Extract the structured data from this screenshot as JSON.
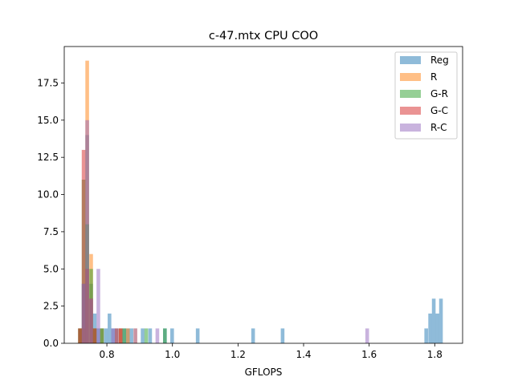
{
  "chart_data": {
    "type": "histogram",
    "title": "c-47.mtx CPU COO",
    "xlabel": "GFLOPS",
    "ylabel": "",
    "xlim": [
      0.67,
      1.885
    ],
    "ylim": [
      0,
      19.95
    ],
    "x_ticks": [
      0.8,
      1.0,
      1.2,
      1.4,
      1.6,
      1.8
    ],
    "x_tick_labels": [
      "0.8",
      "1.0",
      "1.2",
      "1.4",
      "1.6",
      "1.8"
    ],
    "y_ticks": [
      0.0,
      2.5,
      5.0,
      7.5,
      10.0,
      12.5,
      15.0,
      17.5
    ],
    "y_tick_labels": [
      "0.0",
      "2.5",
      "5.0",
      "7.5",
      "10.0",
      "12.5",
      "15.0",
      "17.5"
    ],
    "legend_position": "top-right",
    "grid": false,
    "bin_width": 0.0112,
    "series": [
      {
        "name": "Reg",
        "color": "#1f77b4",
        "bins": [
          {
            "x": 0.718,
            "count": 1
          },
          {
            "x": 0.729,
            "count": 4
          },
          {
            "x": 0.74,
            "count": 14
          },
          {
            "x": 0.752,
            "count": 4
          },
          {
            "x": 0.763,
            "count": 2
          },
          {
            "x": 0.774,
            "count": 1
          },
          {
            "x": 0.785,
            "count": 1
          },
          {
            "x": 0.797,
            "count": 1
          },
          {
            "x": 0.808,
            "count": 2
          },
          {
            "x": 0.819,
            "count": 1
          },
          {
            "x": 0.83,
            "count": 1
          },
          {
            "x": 0.842,
            "count": 1
          },
          {
            "x": 0.853,
            "count": 1
          },
          {
            "x": 0.864,
            "count": 1
          },
          {
            "x": 0.875,
            "count": 1
          },
          {
            "x": 0.909,
            "count": 1
          },
          {
            "x": 0.932,
            "count": 1
          },
          {
            "x": 0.977,
            "count": 1
          },
          {
            "x": 0.999,
            "count": 1
          },
          {
            "x": 1.077,
            "count": 1
          },
          {
            "x": 1.246,
            "count": 1
          },
          {
            "x": 1.336,
            "count": 1
          },
          {
            "x": 1.774,
            "count": 1
          },
          {
            "x": 1.786,
            "count": 2
          },
          {
            "x": 1.797,
            "count": 3
          },
          {
            "x": 1.808,
            "count": 2
          },
          {
            "x": 1.819,
            "count": 3
          }
        ]
      },
      {
        "name": "R",
        "color": "#ff7f0e",
        "bins": [
          {
            "x": 0.718,
            "count": 1
          },
          {
            "x": 0.729,
            "count": 1
          },
          {
            "x": 0.74,
            "count": 19
          },
          {
            "x": 0.752,
            "count": 6
          },
          {
            "x": 0.763,
            "count": 1
          },
          {
            "x": 0.785,
            "count": 1
          },
          {
            "x": 0.842,
            "count": 1
          },
          {
            "x": 0.864,
            "count": 1
          },
          {
            "x": 0.887,
            "count": 1
          }
        ]
      },
      {
        "name": "G-R",
        "color": "#2ca02c",
        "bins": [
          {
            "x": 0.718,
            "count": 1
          },
          {
            "x": 0.729,
            "count": 11
          },
          {
            "x": 0.74,
            "count": 8
          },
          {
            "x": 0.752,
            "count": 5
          },
          {
            "x": 0.763,
            "count": 1
          },
          {
            "x": 0.785,
            "count": 1
          },
          {
            "x": 0.853,
            "count": 1
          },
          {
            "x": 0.92,
            "count": 1
          },
          {
            "x": 0.977,
            "count": 1
          }
        ]
      },
      {
        "name": "G-C",
        "color": "#d62728",
        "bins": [
          {
            "x": 0.718,
            "count": 1
          },
          {
            "x": 0.729,
            "count": 13
          },
          {
            "x": 0.74,
            "count": 5
          },
          {
            "x": 0.752,
            "count": 3
          },
          {
            "x": 0.763,
            "count": 1
          },
          {
            "x": 0.83,
            "count": 1
          },
          {
            "x": 0.842,
            "count": 1
          }
        ]
      },
      {
        "name": "R-C",
        "color": "#9467bd",
        "bins": [
          {
            "x": 0.729,
            "count": 4
          },
          {
            "x": 0.74,
            "count": 15
          },
          {
            "x": 0.752,
            "count": 3
          },
          {
            "x": 0.774,
            "count": 5
          },
          {
            "x": 0.819,
            "count": 1
          },
          {
            "x": 0.887,
            "count": 1
          },
          {
            "x": 0.954,
            "count": 1
          },
          {
            "x": 1.594,
            "count": 1
          }
        ]
      }
    ]
  }
}
